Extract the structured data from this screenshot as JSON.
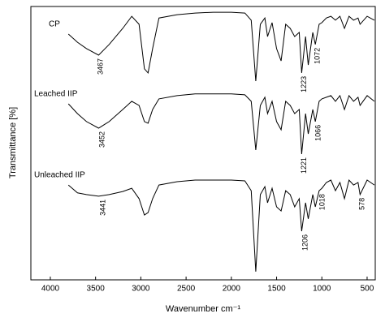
{
  "chart_data": {
    "type": "line",
    "xlabel": "Wavenumber cm⁻¹",
    "ylabel": "Transmittance [%]",
    "xlim": [
      4215,
      410
    ],
    "ylim": [
      0,
      100
    ],
    "xticks": [
      4000,
      3500,
      3000,
      2500,
      2000,
      1500,
      1000,
      500
    ],
    "x": [
      3800,
      3700,
      3600,
      3467,
      3350,
      3200,
      3100,
      3020,
      2960,
      2920,
      2870,
      2800,
      2600,
      2400,
      2200,
      2000,
      1850,
      1780,
      1730,
      1680,
      1630,
      1600,
      1550,
      1500,
      1450,
      1400,
      1350,
      1300,
      1250,
      1223,
      1180,
      1150,
      1100,
      1072,
      1030,
      1000,
      950,
      900,
      850,
      800,
      750,
      700,
      650,
      600,
      578,
      500,
      420
    ],
    "series": [
      {
        "name": "CP",
        "color": "#000000",
        "peak_labels": [
          3467,
          1223,
          1072
        ],
        "values": [
          89.9,
          86.9,
          84.6,
          82.2,
          86.1,
          92.0,
          96.4,
          93.5,
          77.2,
          75.7,
          84.6,
          95.8,
          97.0,
          97.6,
          97.9,
          97.9,
          97.6,
          95.0,
          72.7,
          93.5,
          95.8,
          89.0,
          94.1,
          84.6,
          80.1,
          93.5,
          92.0,
          89.0,
          90.5,
          75.7,
          89.0,
          78.6,
          90.5,
          86.1,
          93.5,
          94.1,
          95.8,
          96.4,
          95.0,
          96.4,
          92.0,
          96.4,
          95.0,
          95.8,
          93.5,
          96.4,
          95.0
        ]
      },
      {
        "name": "Leached IIP",
        "color": "#000000",
        "peak_labels": [
          3452,
          1221,
          1066
        ],
        "values": [
          64.4,
          60.8,
          57.9,
          55.5,
          57.9,
          62.3,
          65.3,
          63.8,
          57.9,
          57.3,
          62.3,
          66.2,
          67.4,
          68.0,
          68.0,
          68.0,
          67.7,
          65.3,
          47.5,
          63.8,
          66.8,
          60.8,
          65.3,
          57.9,
          54.9,
          65.3,
          63.8,
          60.8,
          62.3,
          46.0,
          60.8,
          53.4,
          62.3,
          57.9,
          65.3,
          66.2,
          66.8,
          67.4,
          65.3,
          67.4,
          62.3,
          67.4,
          65.3,
          66.8,
          63.8,
          67.4,
          65.3
        ]
      },
      {
        "name": "Unleached IIP",
        "color": "#000000",
        "peak_labels": [
          3441,
          1206,
          1018,
          578
        ],
        "values": [
          34.7,
          31.8,
          31.2,
          30.6,
          31.2,
          32.3,
          33.5,
          29.7,
          23.7,
          24.6,
          29.7,
          34.7,
          35.9,
          36.5,
          36.5,
          36.5,
          36.2,
          32.6,
          3.0,
          31.2,
          34.1,
          28.2,
          33.5,
          26.7,
          25.2,
          32.6,
          31.2,
          26.7,
          29.7,
          17.8,
          28.2,
          22.3,
          31.2,
          26.7,
          32.6,
          33.5,
          35.6,
          36.5,
          32.6,
          35.6,
          29.7,
          36.5,
          34.7,
          35.6,
          31.2,
          36.5,
          34.7
        ]
      }
    ]
  }
}
